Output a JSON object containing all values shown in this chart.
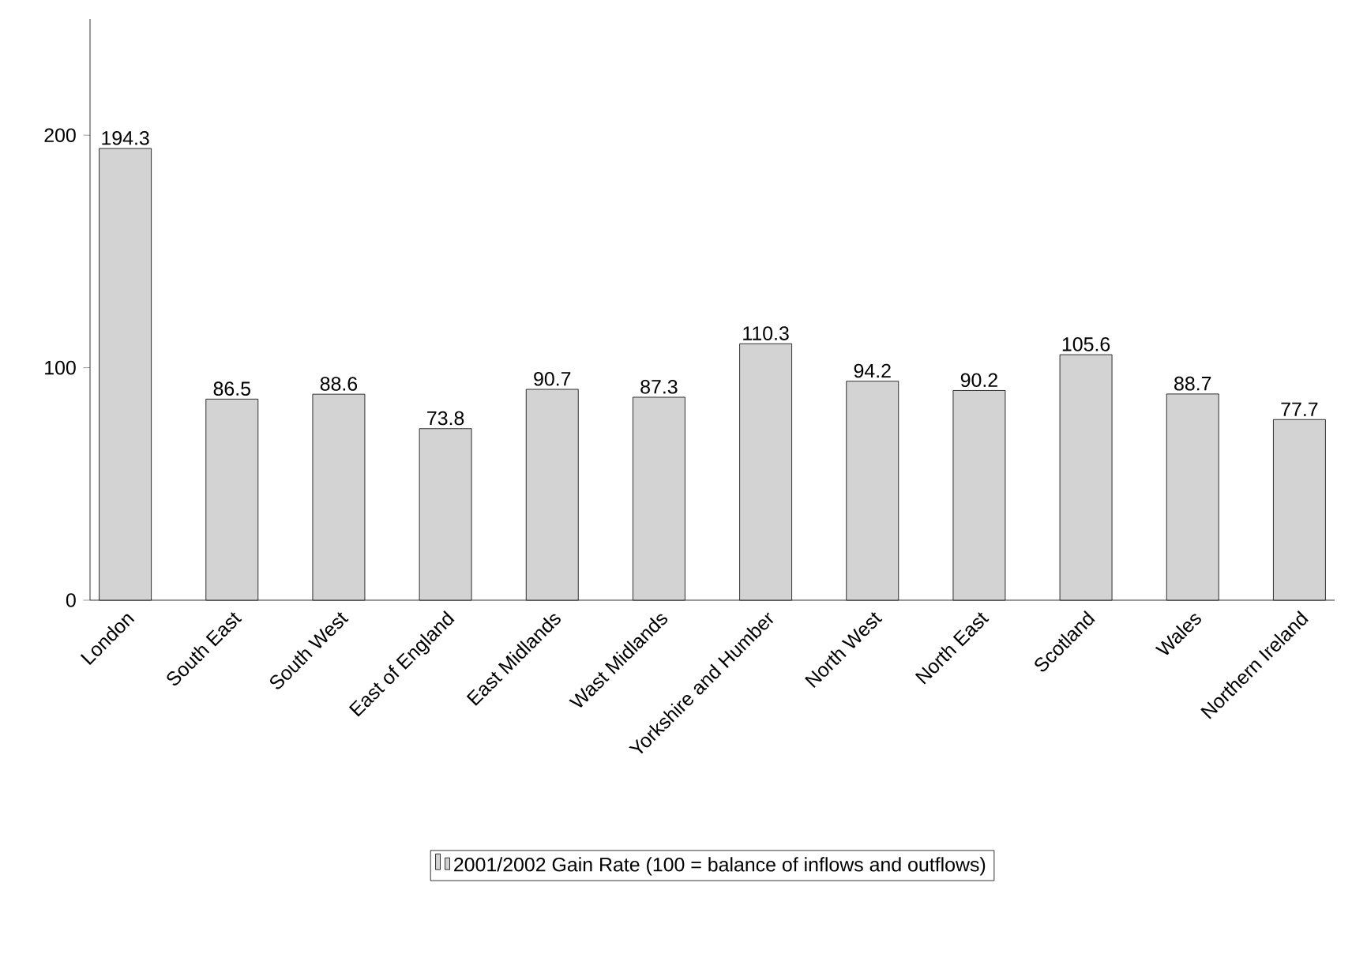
{
  "chart_data": {
    "type": "bar",
    "categories": [
      "London",
      "South East",
      "South West",
      "East of England",
      "East Midlands",
      "Wast Midlands",
      "Yorkshire and Humber",
      "North West",
      "North East",
      "Scotland",
      "Wales",
      "Northern Ireland"
    ],
    "series": [
      {
        "name": "2001/2002 Gain Rate (100 = balance of inflows and outflows)",
        "color": "#d3d3d3",
        "values": [
          194.3,
          86.5,
          88.6,
          73.8,
          90.7,
          87.3,
          110.3,
          94.2,
          90.2,
          105.6,
          88.7,
          77.7
        ]
      }
    ],
    "ylim": [
      0,
      250
    ],
    "yticks": [
      0,
      100,
      200
    ],
    "legend": "bottom",
    "data_labels": true
  }
}
